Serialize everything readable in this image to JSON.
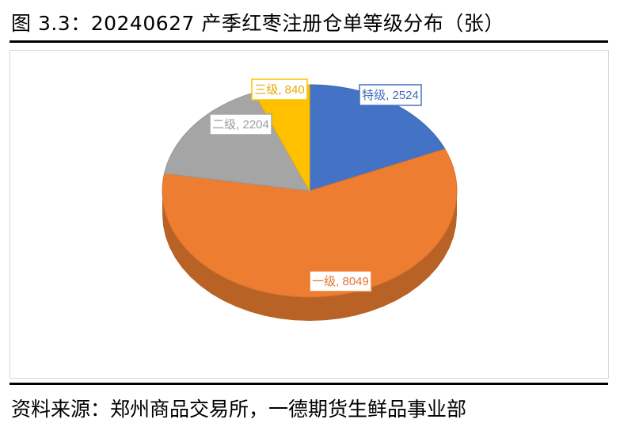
{
  "title": "图 3.3：20240627 产季红枣注册仓单等级分布（张）",
  "source": "资料来源：郑州商品交易所，一德期货生鲜品事业部",
  "chart_data": {
    "type": "pie",
    "style": "3d",
    "title": "",
    "data_labels": "category, value",
    "legend": "none",
    "slices": [
      {
        "label": "特级",
        "value": 2524,
        "color": "#4472c4"
      },
      {
        "label": "一级",
        "value": 8049,
        "color": "#ed7d31"
      },
      {
        "label": "二级",
        "value": 2204,
        "color": "#a5a5a5"
      },
      {
        "label": "三级",
        "value": 840,
        "color": "#ffc000"
      }
    ]
  }
}
